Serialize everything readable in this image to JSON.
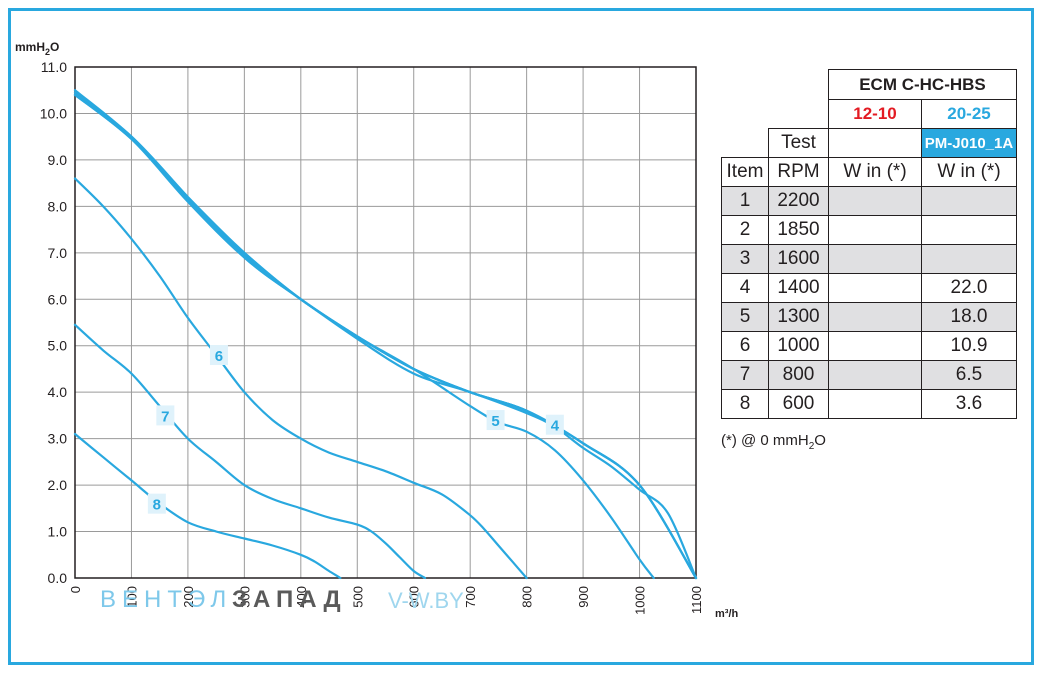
{
  "chart_data": {
    "type": "line",
    "ylabel_main": "mmH",
    "ylabel_sub": "2",
    "ylabel_tail": "O",
    "xlabel": "m³/h",
    "xlim": [
      0,
      1100
    ],
    "ylim": [
      0,
      11
    ],
    "x_ticks": [
      "0",
      "100",
      "200",
      "300",
      "400",
      "500",
      "600",
      "700",
      "800",
      "900",
      "1000",
      "1100"
    ],
    "y_ticks": [
      "0.0",
      "1.0",
      "2.0",
      "3.0",
      "4.0",
      "5.0",
      "6.0",
      "7.0",
      "8.0",
      "9.0",
      "10.0",
      "11.0"
    ],
    "grid": true,
    "series": [
      {
        "name": "1",
        "x": [
          0,
          100,
          200,
          300,
          400,
          500,
          600,
          700,
          800,
          900,
          1000,
          1100
        ],
        "y": [
          10.5,
          9.5,
          8.2,
          7.0,
          6.0,
          5.2,
          4.5,
          4.0,
          3.6,
          2.9,
          2.0,
          0.0
        ]
      },
      {
        "name": "2",
        "x": [
          0,
          100,
          200,
          300,
          400,
          500,
          600,
          700,
          800,
          900,
          1000,
          1100
        ],
        "y": [
          10.45,
          9.5,
          8.15,
          7.0,
          6.0,
          5.2,
          4.5,
          4.0,
          3.6,
          2.9,
          2.0,
          0.0
        ]
      },
      {
        "name": "3",
        "x": [
          0,
          100,
          200,
          300,
          400,
          500,
          600,
          700,
          800,
          900,
          1000,
          1100
        ],
        "y": [
          10.4,
          9.45,
          8.15,
          6.95,
          6.0,
          5.2,
          4.5,
          4.0,
          3.6,
          2.9,
          2.0,
          0.0
        ]
      },
      {
        "name": "4",
        "x": [
          0,
          100,
          200,
          300,
          400,
          500,
          600,
          700,
          800,
          850,
          900,
          950,
          1000,
          1050,
          1100
        ],
        "y": [
          10.4,
          9.5,
          8.2,
          6.9,
          6.0,
          5.15,
          4.4,
          4.0,
          3.55,
          3.25,
          2.8,
          2.4,
          1.9,
          1.4,
          0.0
        ]
      },
      {
        "name": "5",
        "x": [
          0,
          100,
          200,
          300,
          400,
          500,
          600,
          700,
          750,
          800,
          850,
          900,
          950,
          1000,
          1025
        ],
        "y": [
          10.4,
          9.45,
          8.1,
          6.9,
          6.0,
          5.2,
          4.5,
          3.7,
          3.35,
          3.15,
          2.75,
          2.1,
          1.3,
          0.4,
          0.0
        ]
      },
      {
        "name": "6",
        "x": [
          0,
          50,
          100,
          150,
          200,
          250,
          300,
          350,
          400,
          450,
          500,
          550,
          600,
          650,
          700,
          725,
          750,
          775,
          800
        ],
        "y": [
          8.6,
          8.0,
          7.3,
          6.5,
          5.6,
          4.8,
          4.0,
          3.4,
          3.0,
          2.7,
          2.5,
          2.3,
          2.05,
          1.8,
          1.35,
          1.05,
          0.7,
          0.35,
          0.0
        ]
      },
      {
        "name": "7",
        "x": [
          0,
          50,
          100,
          150,
          200,
          250,
          300,
          350,
          400,
          450,
          500,
          525,
          550,
          575,
          600,
          620
        ],
        "y": [
          5.45,
          4.9,
          4.4,
          3.7,
          3.0,
          2.5,
          2.0,
          1.7,
          1.5,
          1.3,
          1.15,
          1.0,
          0.75,
          0.45,
          0.15,
          0.0
        ]
      },
      {
        "name": "8",
        "x": [
          0,
          50,
          100,
          150,
          200,
          250,
          300,
          350,
          400,
          425,
          450,
          470
        ],
        "y": [
          3.1,
          2.6,
          2.1,
          1.6,
          1.2,
          1.0,
          0.85,
          0.7,
          0.5,
          0.35,
          0.15,
          0.0
        ]
      }
    ],
    "curve_labels": [
      {
        "text": "4",
        "x": 850,
        "y": 3.3
      },
      {
        "text": "5",
        "x": 745,
        "y": 3.4
      },
      {
        "text": "6",
        "x": 255,
        "y": 4.8
      },
      {
        "text": "7",
        "x": 160,
        "y": 3.5
      },
      {
        "text": "8",
        "x": 145,
        "y": 1.6
      }
    ]
  },
  "colors": {
    "curve": "#29a8df",
    "grid": "#9a9a9a",
    "axis": "#231f20",
    "label_bg": "#dff2fb",
    "frame": "#29a8df"
  },
  "table": {
    "brand": "ECM C-HC-HBS",
    "col_a": "12-10",
    "col_b": "20-25",
    "test_label": "Test",
    "model": "PM-J010_1A",
    "header": [
      "Item",
      "RPM",
      "W in (*)",
      "W in (*)"
    ],
    "rows": [
      [
        "1",
        "2200",
        "",
        ""
      ],
      [
        "2",
        "1850",
        "",
        ""
      ],
      [
        "3",
        "1600",
        "",
        ""
      ],
      [
        "4",
        "1400",
        "",
        "22.0"
      ],
      [
        "5",
        "1300",
        "",
        "18.0"
      ],
      [
        "6",
        "1000",
        "",
        "10.9"
      ],
      [
        "7",
        "800",
        "",
        "6.5"
      ],
      [
        "8",
        "600",
        "",
        "3.6"
      ]
    ]
  },
  "footnote": {
    "prefix": "(*) @ 0 mmH",
    "sub": "2",
    "suffix": "O"
  },
  "watermark": {
    "part1": "ВЕНТЭЛ",
    "part2": "ЗАПАД",
    "part3": "V-W.BY"
  }
}
